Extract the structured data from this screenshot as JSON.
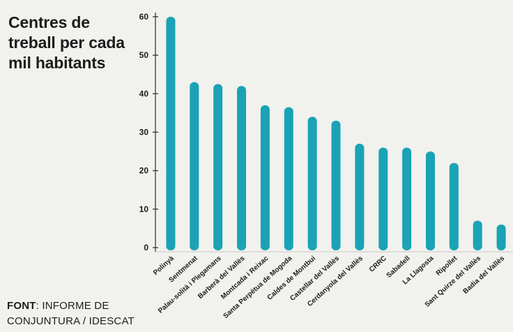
{
  "title": "Centres de\ntreball per cada\nmil habitants",
  "source": {
    "label": "FONT",
    "line1": ": INFORME DE",
    "line2": "CONJUNTURA / IDESCAT"
  },
  "colors": {
    "bar": "#1aa3b5",
    "axis": "#2a2a2a",
    "grid": "#c9c9c4",
    "text": "#1c1c1c"
  },
  "chart_data": {
    "type": "bar",
    "title": "Centres de treball per cada mil habitants",
    "xlabel": "",
    "ylabel": "",
    "ylim": [
      0,
      60
    ],
    "yticks": [
      0,
      10,
      20,
      30,
      40,
      50,
      60
    ],
    "grid": false,
    "categories": [
      "Polinyà",
      "Sentmenat",
      "Palau-solità i Plegamans",
      "Barberà del Vallès",
      "Montcada i Reixac",
      "Santa Perpètua de Mogoda",
      "Caldes de Montbui",
      "Castellar del Vallès",
      "Cerdanyola del Vallès",
      "CRRC",
      "Sabadell",
      "La Llagosta",
      "Ripollet",
      "Sant Quirze del Vallès",
      "Badia del Vallès"
    ],
    "values": [
      60,
      43,
      42.5,
      42,
      37,
      36.5,
      34,
      33,
      27,
      26,
      26,
      25,
      22,
      7,
      6
    ]
  }
}
